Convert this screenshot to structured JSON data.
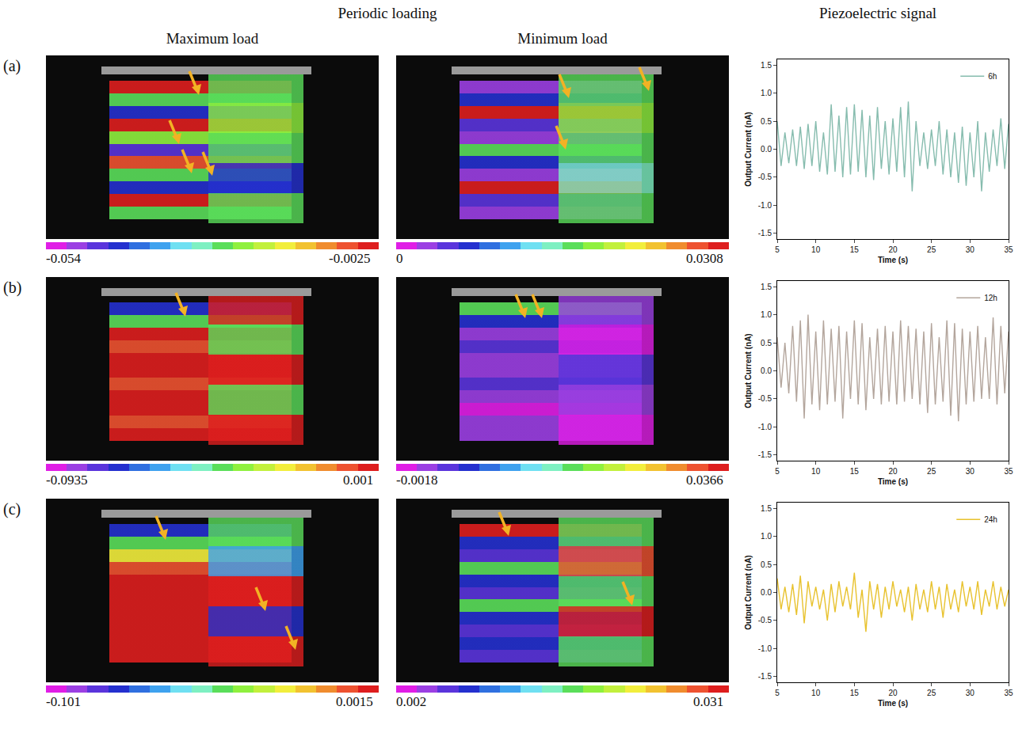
{
  "figure": {
    "column_titles": {
      "loading": "Periodic loading",
      "max": "Maximum load",
      "min": "Minimum load",
      "signal": "Piezoelectric signal"
    },
    "rows": [
      {
        "label": "(a)",
        "max_load_colorbar": {
          "min": -0.054,
          "max": -0.0025
        },
        "min_load_colorbar": {
          "min": 0,
          "max": 0.0308
        }
      },
      {
        "label": "(b)",
        "max_load_colorbar": {
          "min": -0.0935,
          "max": 0.001
        },
        "min_load_colorbar": {
          "min": -0.0018,
          "max": 0.0366
        }
      },
      {
        "label": "(c)",
        "max_load_colorbar": {
          "min": -0.101,
          "max": 0.0015
        },
        "min_load_colorbar": {
          "min": 0.002,
          "max": 0.031
        }
      }
    ]
  },
  "chart_data": [
    {
      "type": "line",
      "x_label": "Time (s)",
      "y_label": "Output Current (nA)",
      "legend": "upper right",
      "x": [
        5,
        5.5,
        6,
        6.5,
        7,
        7.5,
        8,
        8.5,
        9,
        9.5,
        10,
        10.5,
        11,
        11.5,
        12,
        12.5,
        13,
        13.5,
        14,
        14.5,
        15,
        15.5,
        16,
        16.5,
        17,
        17.5,
        18,
        18.5,
        19,
        19.5,
        20,
        20.5,
        21,
        21.5,
        22,
        22.5,
        23,
        23.5,
        24,
        24.5,
        25,
        25.5,
        26,
        26.5,
        27,
        27.5,
        28,
        28.5,
        29,
        29.5,
        30,
        30.5,
        31,
        31.5,
        32,
        32.5,
        33,
        33.5,
        34,
        34.5,
        35
      ],
      "xlim": [
        5,
        35
      ],
      "xticks": [
        5,
        10,
        15,
        20,
        25,
        30,
        35
      ],
      "ylim": [
        -1.6,
        1.6
      ],
      "yticks": [
        {
          "value": -1.5,
          "label": "-1.5"
        },
        {
          "value": -1,
          "label": "-1.0"
        },
        {
          "value": -0.5,
          "label": "-0.5"
        },
        {
          "value": 0,
          "label": "0.0"
        },
        {
          "value": 0.5,
          "label": "0.5"
        },
        {
          "value": 1,
          "label": "1.0"
        },
        {
          "value": 1.5,
          "label": "1.5"
        }
      ],
      "series": [
        {
          "name": "6h",
          "color": "#86bcae",
          "values": [
            0.5,
            -0.3,
            0.3,
            -0.25,
            0.35,
            -0.3,
            0.4,
            -0.35,
            0.45,
            -0.3,
            0.5,
            -0.4,
            0.3,
            -0.45,
            0.8,
            -0.4,
            0.6,
            -0.5,
            0.75,
            -0.45,
            0.8,
            -0.4,
            0.7,
            -0.5,
            0.6,
            -0.55,
            0.75,
            -0.35,
            0.5,
            -0.45,
            0.55,
            -0.4,
            0.75,
            -0.5,
            0.85,
            -0.75,
            0.5,
            -0.3,
            0.3,
            -0.35,
            0.35,
            -0.3,
            0.5,
            -0.45,
            0.35,
            -0.5,
            0.3,
            -0.6,
            0.4,
            -0.65,
            0.3,
            -0.5,
            0.5,
            -0.75,
            0.3,
            -0.4,
            0.35,
            -0.3,
            0.55,
            -0.35,
            0.45
          ]
        }
      ]
    },
    {
      "type": "line",
      "x_label": "Time (s)",
      "y_label": "Output Current (nA)",
      "legend": "upper right",
      "x": [
        5,
        5.5,
        6,
        6.5,
        7,
        7.5,
        8,
        8.5,
        9,
        9.5,
        10,
        10.5,
        11,
        11.5,
        12,
        12.5,
        13,
        13.5,
        14,
        14.5,
        15,
        15.5,
        16,
        16.5,
        17,
        17.5,
        18,
        18.5,
        19,
        19.5,
        20,
        20.5,
        21,
        21.5,
        22,
        22.5,
        23,
        23.5,
        24,
        24.5,
        25,
        25.5,
        26,
        26.5,
        27,
        27.5,
        28,
        28.5,
        29,
        29.5,
        30,
        30.5,
        31,
        31.5,
        32,
        32.5,
        33,
        33.5,
        34,
        34.5,
        35
      ],
      "xlim": [
        5,
        35
      ],
      "xticks": [
        5,
        10,
        15,
        20,
        25,
        30,
        35
      ],
      "ylim": [
        -1.6,
        1.6
      ],
      "yticks": [
        {
          "value": -1.5,
          "label": "-1.5"
        },
        {
          "value": -1,
          "label": "-1.0"
        },
        {
          "value": -0.5,
          "label": "-0.5"
        },
        {
          "value": 0,
          "label": "0.0"
        },
        {
          "value": 0.5,
          "label": "0.5"
        },
        {
          "value": 1,
          "label": "1.0"
        },
        {
          "value": 1.5,
          "label": "1.5"
        }
      ],
      "series": [
        {
          "name": "12h",
          "color": "#b3a59c",
          "values": [
            0.6,
            -0.3,
            0.5,
            -0.4,
            0.8,
            -0.55,
            0.9,
            -0.85,
            1.0,
            -0.6,
            0.7,
            -0.7,
            0.9,
            -0.6,
            0.75,
            -0.55,
            0.8,
            -0.85,
            0.7,
            -0.5,
            0.9,
            -0.6,
            0.85,
            -0.7,
            0.6,
            -0.5,
            0.75,
            -0.6,
            0.8,
            -0.55,
            0.7,
            -0.6,
            0.9,
            -0.55,
            0.8,
            -0.5,
            0.75,
            -0.6,
            0.7,
            -0.75,
            0.85,
            -0.6,
            0.6,
            -0.55,
            0.9,
            -0.8,
            0.85,
            -0.9,
            0.75,
            -0.6,
            0.7,
            -0.55,
            0.8,
            -0.5,
            0.6,
            -0.5,
            0.95,
            -0.6,
            0.8,
            -0.4,
            0.7
          ]
        }
      ]
    },
    {
      "type": "line",
      "x_label": "Time (s)",
      "y_label": "Output Current (nA)",
      "legend": "upper right",
      "x": [
        5,
        5.5,
        6,
        6.5,
        7,
        7.5,
        8,
        8.5,
        9,
        9.5,
        10,
        10.5,
        11,
        11.5,
        12,
        12.5,
        13,
        13.5,
        14,
        14.5,
        15,
        15.5,
        16,
        16.5,
        17,
        17.5,
        18,
        18.5,
        19,
        19.5,
        20,
        20.5,
        21,
        21.5,
        22,
        22.5,
        23,
        23.5,
        24,
        24.5,
        25,
        25.5,
        26,
        26.5,
        27,
        27.5,
        28,
        28.5,
        29,
        29.5,
        30,
        30.5,
        31,
        31.5,
        32,
        32.5,
        33,
        33.5,
        34,
        34.5,
        35
      ],
      "xlim": [
        5,
        35
      ],
      "xticks": [
        5,
        10,
        15,
        20,
        25,
        30,
        35
      ],
      "ylim": [
        -1.6,
        1.6
      ],
      "yticks": [
        {
          "value": -1.5,
          "label": "-1.5"
        },
        {
          "value": -1,
          "label": "-1.0"
        },
        {
          "value": -0.5,
          "label": "-0.5"
        },
        {
          "value": 0,
          "label": "0.0"
        },
        {
          "value": 0.5,
          "label": "0.5"
        },
        {
          "value": 1,
          "label": "1.0"
        },
        {
          "value": 1.5,
          "label": "1.5"
        }
      ],
      "series": [
        {
          "name": "24h",
          "color": "#e8c22e",
          "values": [
            0.25,
            -0.3,
            0.1,
            -0.35,
            0.15,
            -0.4,
            0.3,
            -0.55,
            0.2,
            -0.25,
            0.1,
            -0.3,
            0.05,
            -0.5,
            0.15,
            -0.35,
            0.2,
            -0.25,
            0.1,
            -0.3,
            0.35,
            -0.45,
            0.05,
            -0.7,
            0.2,
            -0.3,
            0.15,
            -0.45,
            0.1,
            -0.3,
            0.2,
            -0.25,
            0.05,
            -0.35,
            0.1,
            -0.5,
            0.15,
            -0.3,
            0.05,
            -0.35,
            0.2,
            -0.3,
            0.1,
            -0.45,
            0.15,
            -0.3,
            0.05,
            -0.35,
            0.2,
            -0.25,
            0.1,
            -0.3,
            0.2,
            -0.4,
            0.05,
            -0.25,
            0.2,
            -0.3,
            0.1,
            -0.25,
            0.05
          ]
        }
      ]
    }
  ]
}
